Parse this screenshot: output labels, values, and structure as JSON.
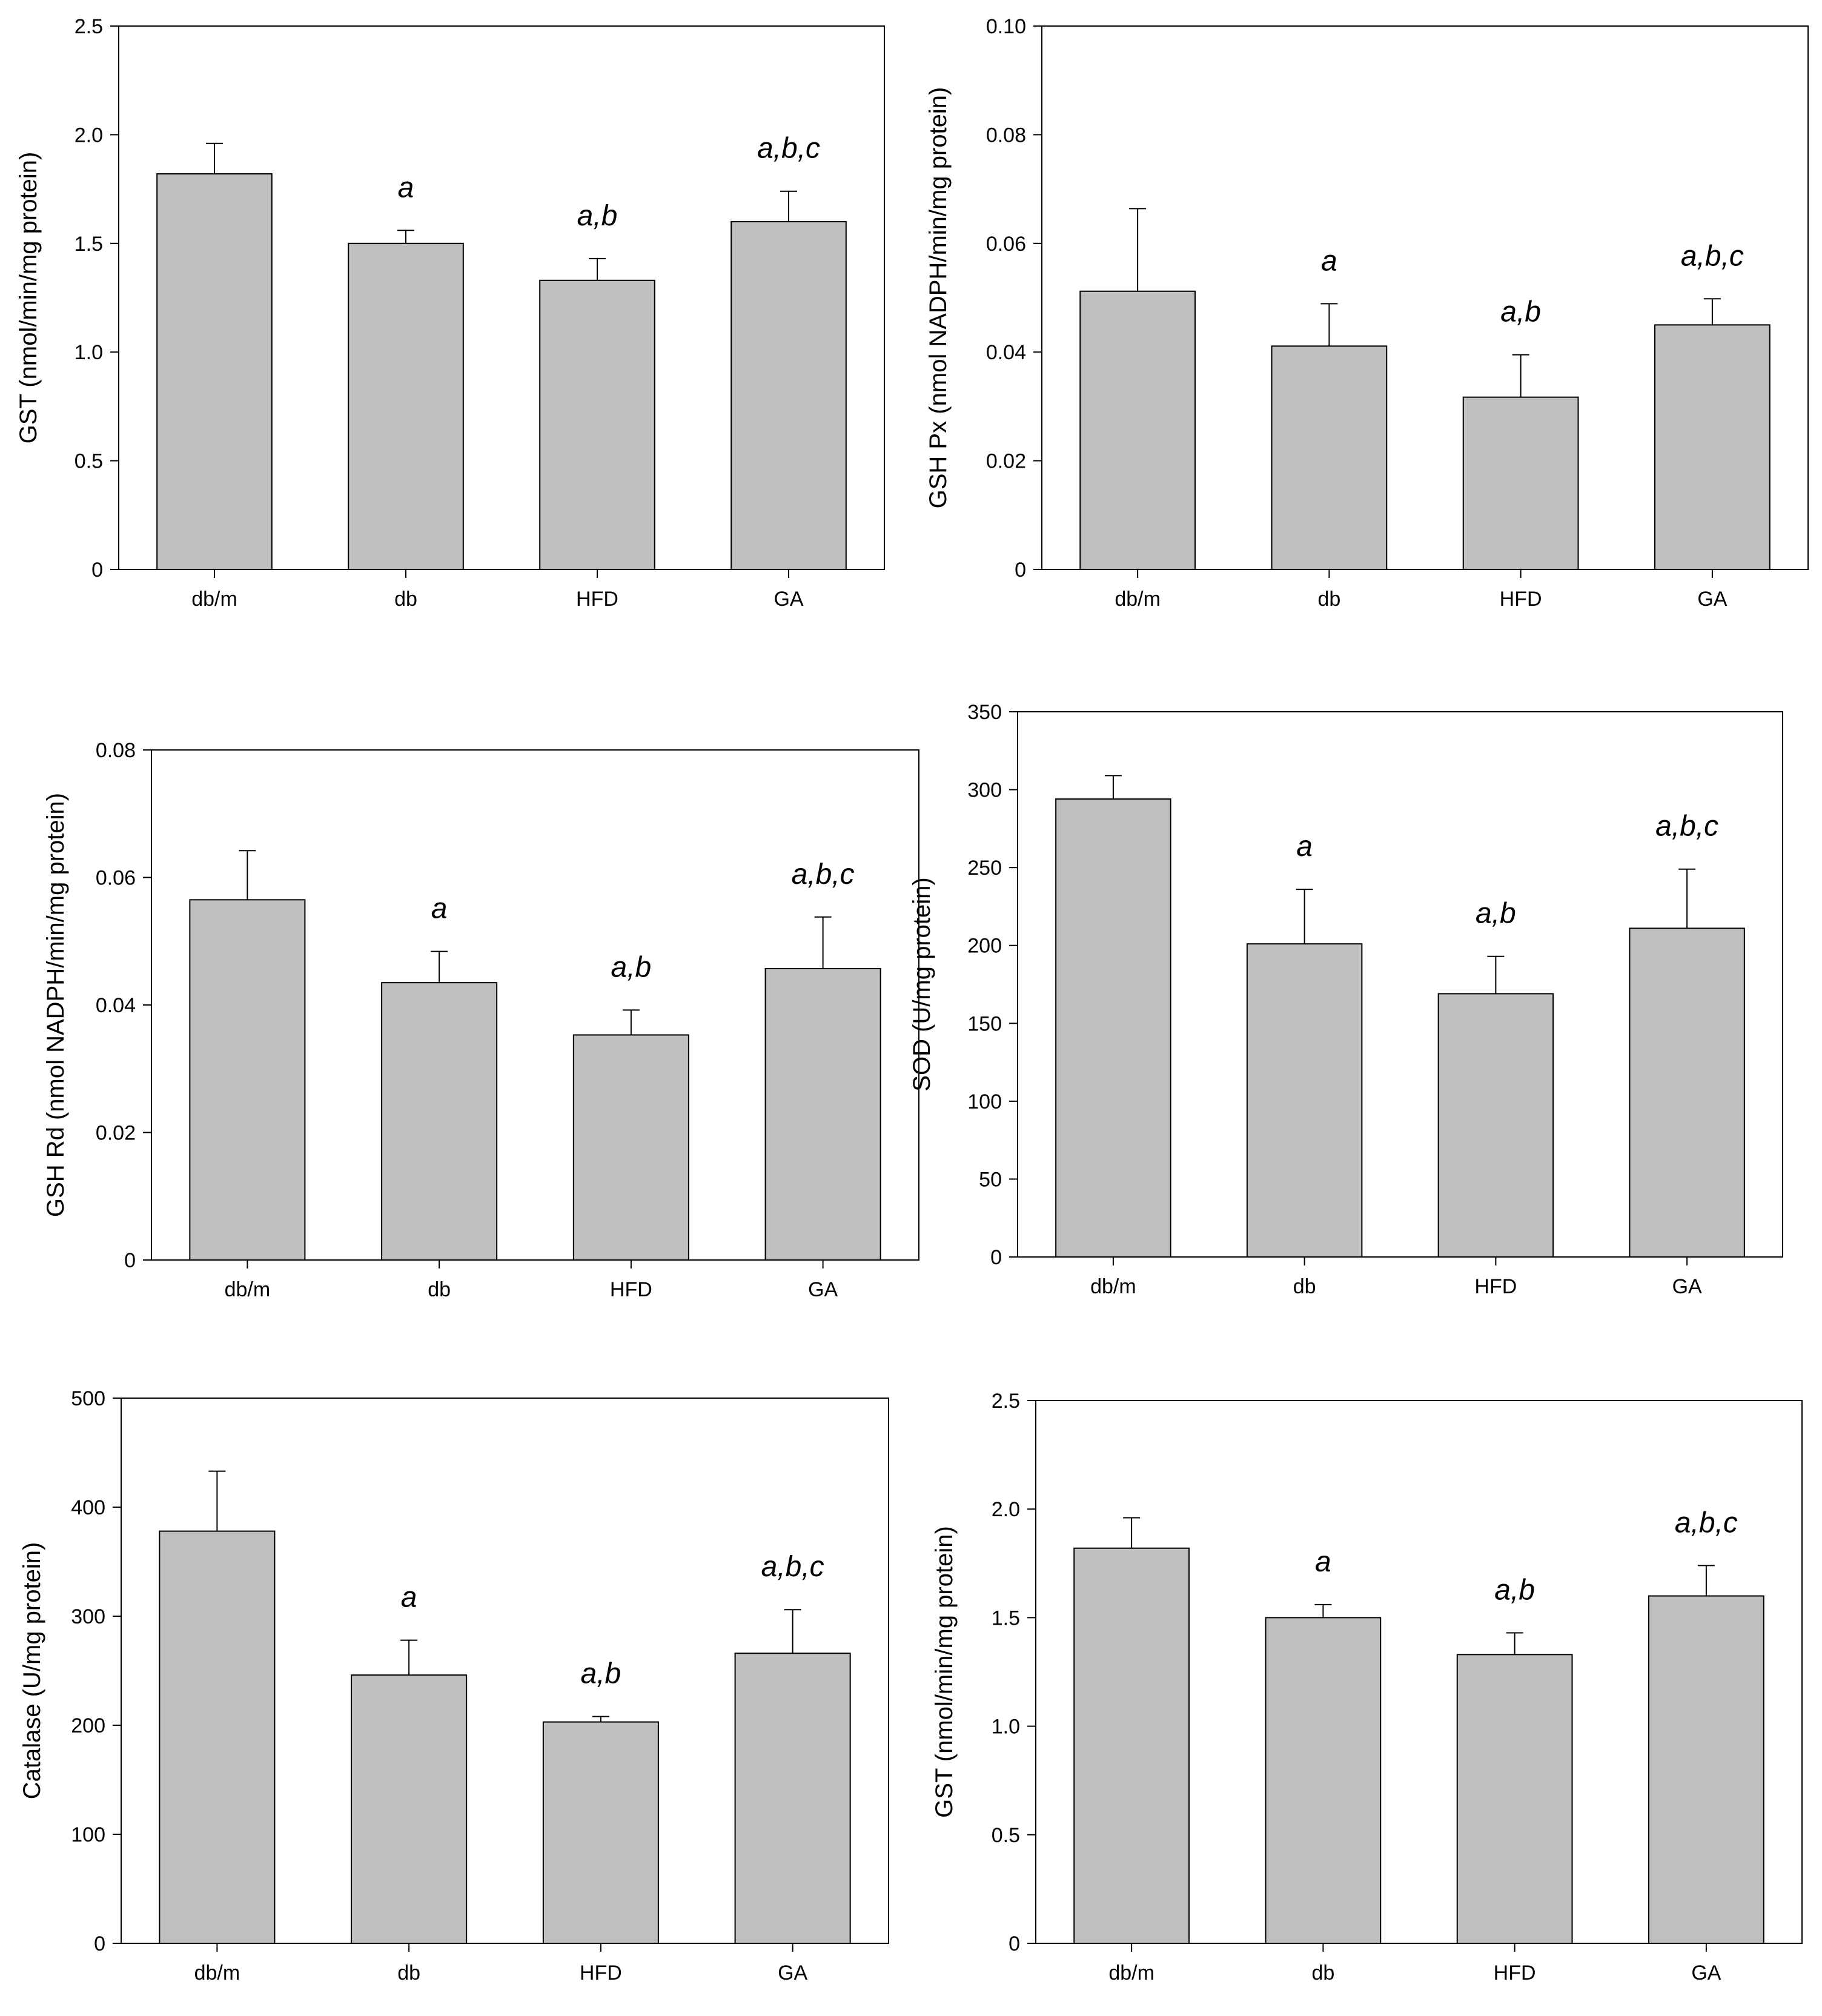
{
  "figure": {
    "bar_color": "#c0c0c0",
    "axis_color": "#000000"
  },
  "chart_data": [
    {
      "type": "bar",
      "panel": "top-left",
      "title": "",
      "xlabel": "",
      "ylabel": "GST (nmol/min/mg protein)",
      "categories": [
        "db/m",
        "db",
        "HFD",
        "GA"
      ],
      "values": [
        1.82,
        1.5,
        1.33,
        1.6
      ],
      "errors": [
        0.14,
        0.06,
        0.1,
        0.14
      ],
      "significance": [
        "",
        "a",
        "a,b",
        "a,b,c"
      ],
      "ylim": [
        0,
        2.5
      ],
      "yticks": [
        0,
        0.5,
        1.0,
        1.5,
        2.0,
        2.5
      ],
      "ytick_labels": [
        "0",
        "0.5",
        "1.0",
        "1.5",
        "2.0",
        "2.5"
      ],
      "grid": false
    },
    {
      "type": "bar",
      "panel": "top-right",
      "title": "",
      "xlabel": "",
      "ylabel": "GSH Px (nmol NADPH/min/mg protein)",
      "categories": [
        "db/m",
        "db",
        "HFD",
        "GA"
      ],
      "values": [
        0.0512,
        0.0411,
        0.0317,
        0.045
      ],
      "errors": [
        0.0152,
        0.0078,
        0.0078,
        0.0048
      ],
      "significance": [
        "",
        "a",
        "a,b",
        "a,b,c"
      ],
      "ylim": [
        0,
        0.1
      ],
      "yticks": [
        0,
        0.02,
        0.04,
        0.06,
        0.08,
        0.1
      ],
      "ytick_labels": [
        "0",
        "0.02",
        "0.04",
        "0.06",
        "0.08",
        "0.10"
      ],
      "grid": false
    },
    {
      "type": "bar",
      "panel": "middle-left",
      "title": "",
      "xlabel": "",
      "ylabel": "GSH Rd (nmol NADPH/min/mg protein)",
      "categories": [
        "db/m",
        "db",
        "HFD",
        "GA"
      ],
      "values": [
        0.0565,
        0.0435,
        0.0353,
        0.0457
      ],
      "errors": [
        0.0077,
        0.0049,
        0.0039,
        0.0081
      ],
      "significance": [
        "",
        "a",
        "a,b",
        "a,b,c"
      ],
      "ylim": [
        0,
        0.08
      ],
      "yticks": [
        0,
        0.02,
        0.04,
        0.06,
        0.08
      ],
      "ytick_labels": [
        "0",
        "0.02",
        "0.04",
        "0.06",
        "0.08"
      ],
      "grid": false
    },
    {
      "type": "bar",
      "panel": "middle-right",
      "title": "",
      "xlabel": "",
      "ylabel": "SOD (U/mg protein)",
      "categories": [
        "db/m",
        "db",
        "HFD",
        "GA"
      ],
      "values": [
        294,
        201,
        169,
        211
      ],
      "errors": [
        15,
        35,
        24,
        38
      ],
      "significance": [
        "",
        "a",
        "a,b",
        "a,b,c"
      ],
      "ylim": [
        0,
        350
      ],
      "yticks": [
        0,
        50,
        100,
        150,
        200,
        250,
        300,
        350
      ],
      "ytick_labels": [
        "0",
        "50",
        "100",
        "150",
        "200",
        "250",
        "300",
        "350"
      ],
      "grid": false
    },
    {
      "type": "bar",
      "panel": "bottom-left",
      "title": "",
      "xlabel": "",
      "ylabel": "Catalase (U/mg protein)",
      "categories": [
        "db/m",
        "db",
        "HFD",
        "GA"
      ],
      "values": [
        378,
        246,
        203,
        266
      ],
      "errors": [
        55,
        32,
        5,
        40
      ],
      "significance": [
        "",
        "a",
        "a,b",
        "a,b,c"
      ],
      "ylim": [
        0,
        500
      ],
      "yticks": [
        0,
        100,
        200,
        300,
        400,
        500
      ],
      "ytick_labels": [
        "0",
        "100",
        "200",
        "300",
        "400",
        "500"
      ],
      "grid": false
    },
    {
      "type": "bar",
      "panel": "bottom-right",
      "title": "",
      "xlabel": "",
      "ylabel": "GST (nmol/min/mg protein)",
      "categories": [
        "db/m",
        "db",
        "HFD",
        "GA"
      ],
      "values": [
        1.82,
        1.5,
        1.33,
        1.6
      ],
      "errors": [
        0.14,
        0.06,
        0.1,
        0.14
      ],
      "significance": [
        "",
        "a",
        "a,b",
        "a,b,c"
      ],
      "ylim": [
        0,
        2.5
      ],
      "yticks": [
        0,
        0.5,
        1.0,
        1.5,
        2.0,
        2.5
      ],
      "ytick_labels": [
        "0",
        "0.5",
        "1.0",
        "1.5",
        "2.0",
        "2.5"
      ],
      "grid": false
    }
  ]
}
